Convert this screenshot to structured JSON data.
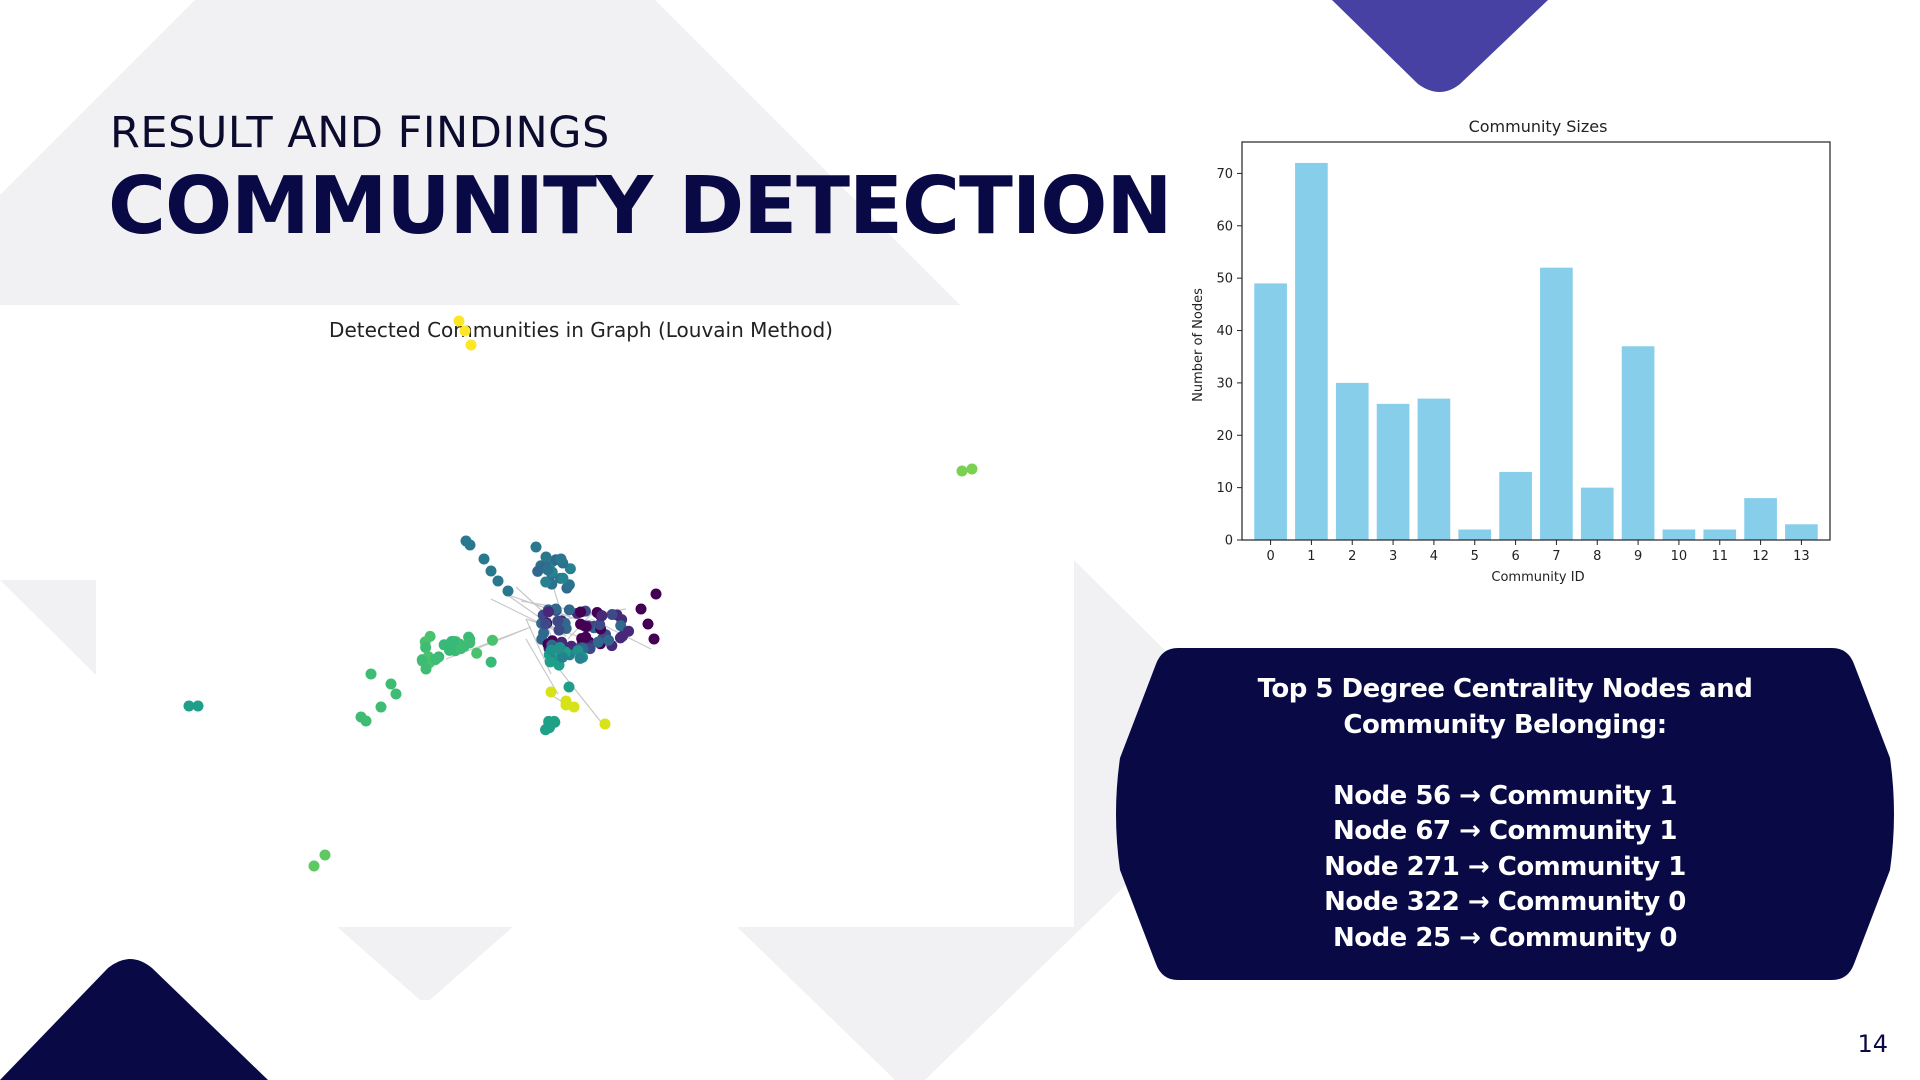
{
  "slide": {
    "subtitle": "RESULT AND FINDINGS",
    "title": "COMMUNITY DETECTION",
    "page_number": "14"
  },
  "colors": {
    "navy": "#090a45",
    "indigo_accent": "#4641a3",
    "light_gray_shape": "#f1f1f3",
    "bar_color": "#87ceeb"
  },
  "network_figure": {
    "title": "Detected Communities in Graph (Louvain Method)"
  },
  "info_box": {
    "heading_line1": "Top 5 Degree Centrality Nodes and",
    "heading_line2": "Community Belonging:",
    "items": [
      "Node 56 → Community 1",
      "Node 67 → Community 1",
      "Node 271 → Community 1",
      "Node 322 → Community 0",
      "Node 25 → Community 0"
    ]
  },
  "chart_data": {
    "type": "bar",
    "title": "Community Sizes",
    "xlabel": "Community ID",
    "ylabel": "Number of Nodes",
    "categories": [
      "0",
      "1",
      "2",
      "3",
      "4",
      "5",
      "6",
      "7",
      "8",
      "9",
      "10",
      "11",
      "12",
      "13"
    ],
    "values": [
      49,
      72,
      30,
      26,
      27,
      2,
      13,
      52,
      10,
      37,
      2,
      2,
      8,
      3
    ],
    "ylim": [
      0,
      76
    ],
    "yticks": [
      0,
      10,
      20,
      30,
      40,
      50,
      60,
      70
    ],
    "grid": false,
    "color": "#87ceeb"
  }
}
